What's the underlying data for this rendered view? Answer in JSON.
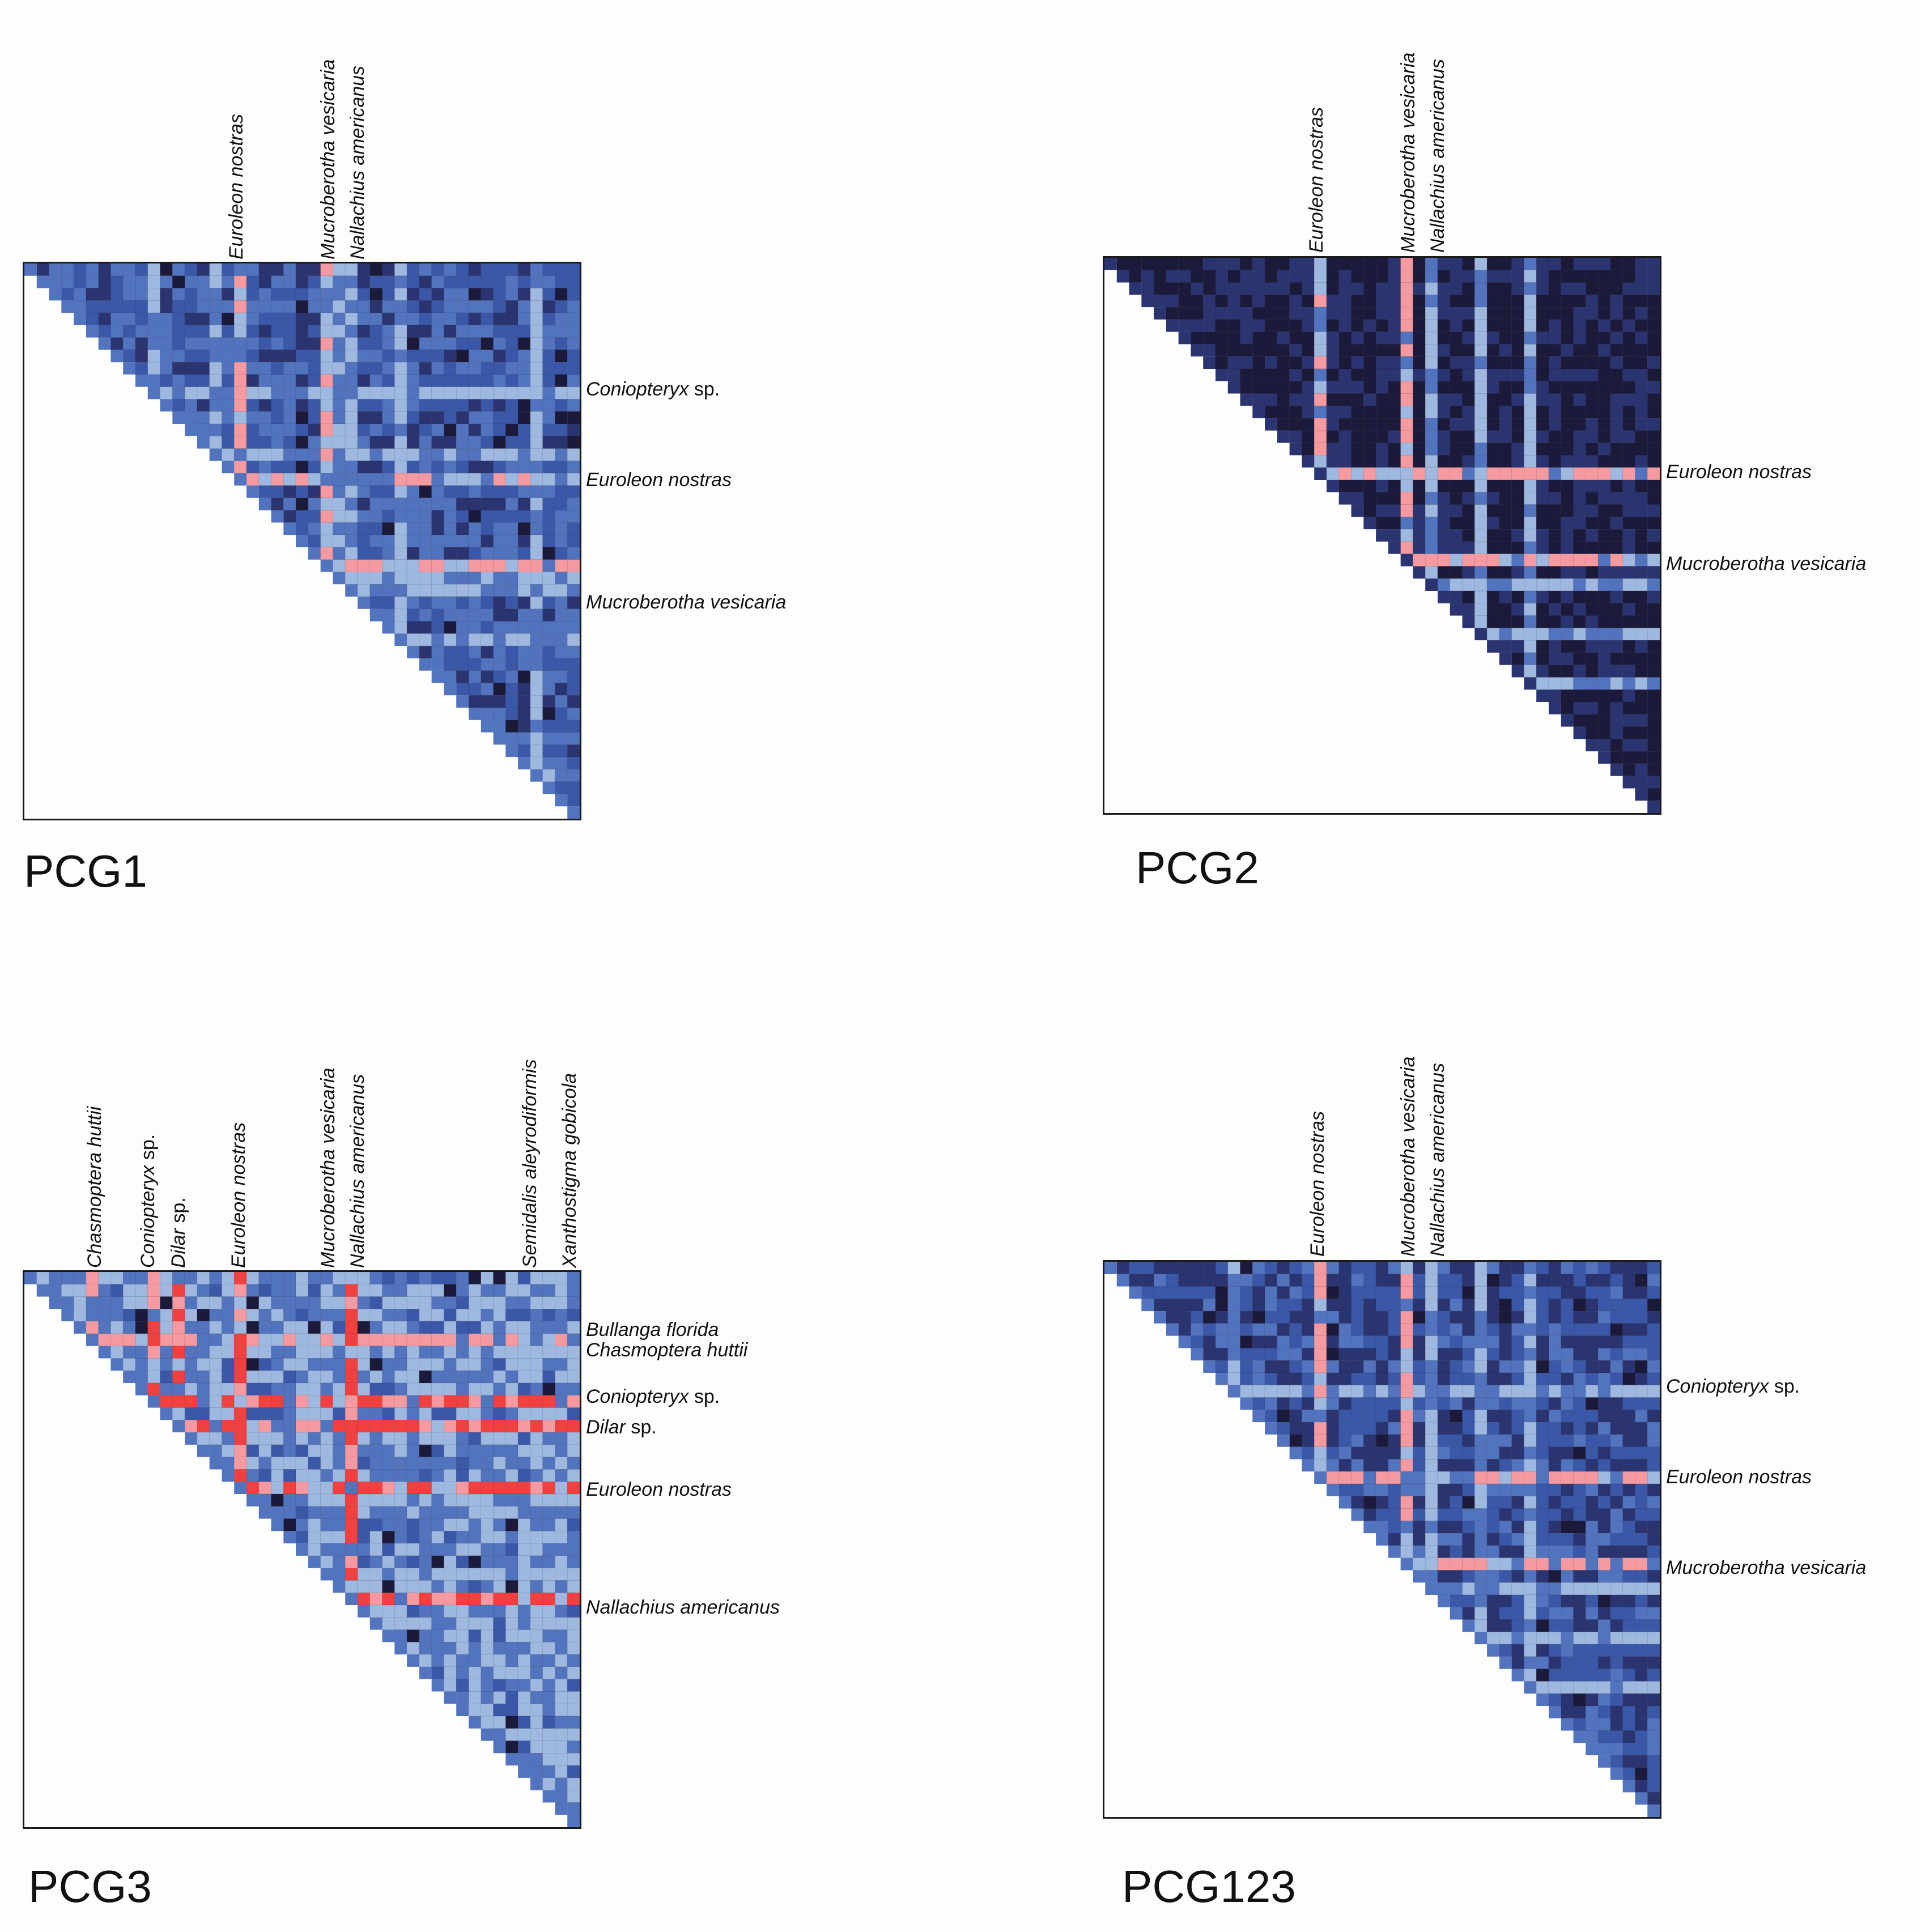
{
  "chart_data": [
    {
      "type": "heatmap",
      "title": "PCG1",
      "columns_labeled": [
        "Euroleon nostras",
        "Mucroberotha vesicaria",
        "Nallachius americanus"
      ],
      "rows_labeled": [
        "Coniopteryx sp.",
        "Euroleon nostras",
        "Mucroberotha vesicaria"
      ],
      "color_scale": "dark navy (low) → blue → light blue → pink → red (high)"
    },
    {
      "type": "heatmap",
      "title": "PCG2",
      "columns_labeled": [
        "Euroleon nostras",
        "Mucroberotha vesicaria",
        "Nallachius americanus"
      ],
      "rows_labeled": [
        "Euroleon nostras",
        "Mucroberotha vesicaria"
      ],
      "color_scale": "dark navy (low) → blue → light blue → pink → red (high)"
    },
    {
      "type": "heatmap",
      "title": "PCG3",
      "columns_labeled": [
        "Chasmoptera huttii",
        "Coniopteryx sp.",
        "Dilar sp.",
        "Euroleon nostras",
        "Mucroberotha vesicaria",
        "Nallachius americanus",
        "Semidalis aleyrodiformis",
        "Xanthostigma gobicola"
      ],
      "rows_labeled": [
        "Bullanga florida",
        "Chasmoptera huttii",
        "Coniopteryx sp.",
        "Dilar sp.",
        "Euroleon nostras",
        "Nallachius americanus"
      ],
      "color_scale": "dark navy (low) → blue → light blue → pink → red (high)"
    },
    {
      "type": "heatmap",
      "title": "PCG123",
      "columns_labeled": [
        "Euroleon nostras",
        "Mucroberotha vesicaria",
        "Nallachius americanus"
      ],
      "rows_labeled": [
        "Coniopteryx sp.",
        "Euroleon nostras",
        "Mucroberotha vesicaria"
      ],
      "color_scale": "dark navy (low) → blue → light blue → pink → red (high)"
    }
  ],
  "panels": {
    "p1": {
      "title": "PCG1",
      "cols": [
        {
          "label": "Euroleon nostras",
          "italic": "Euroleon nostras",
          "plain": ""
        },
        {
          "label": "Mucroberotha vesicaria",
          "italic": "Mucroberotha vesicaria",
          "plain": ""
        },
        {
          "label": "Nallachius americanus",
          "italic": "Nallachius americanus",
          "plain": ""
        }
      ],
      "rows": [
        {
          "italic": "Coniopteryx",
          "plain": " sp."
        },
        {
          "italic": "Euroleon nostras",
          "plain": ""
        },
        {
          "italic": "Mucroberotha vesicaria",
          "plain": ""
        }
      ]
    },
    "p2": {
      "title": "PCG2",
      "cols": [
        {
          "italic": "Euroleon nostras",
          "plain": ""
        },
        {
          "italic": "Mucroberotha vesicaria",
          "plain": ""
        },
        {
          "italic": "Nallachius americanus",
          "plain": ""
        }
      ],
      "rows": [
        {
          "italic": "Euroleon nostras",
          "plain": ""
        },
        {
          "italic": "Mucroberotha vesicaria",
          "plain": ""
        }
      ]
    },
    "p3": {
      "title": "PCG3",
      "cols": [
        {
          "italic": "Chasmoptera huttii",
          "plain": ""
        },
        {
          "italic": "Coniopteryx",
          "plain": " sp."
        },
        {
          "italic": "Dilar",
          "plain": " sp."
        },
        {
          "italic": "Euroleon nostras",
          "plain": ""
        },
        {
          "italic": "Mucroberotha vesicaria",
          "plain": ""
        },
        {
          "italic": "Nallachius americanus",
          "plain": ""
        },
        {
          "italic": "Semidalis aleyrodiformis",
          "plain": ""
        },
        {
          "italic": "Xanthostigma gobicola",
          "plain": ""
        }
      ],
      "rows": [
        {
          "italic": "Bullanga florida",
          "plain": ""
        },
        {
          "italic": "Chasmoptera huttii",
          "plain": ""
        },
        {
          "italic": "Coniopteryx",
          "plain": " sp."
        },
        {
          "italic": "Dilar",
          "plain": " sp."
        },
        {
          "italic": "Euroleon nostras",
          "plain": ""
        },
        {
          "italic": "Nallachius americanus",
          "plain": ""
        }
      ]
    },
    "p4": {
      "title": "PCG123",
      "cols": [
        {
          "italic": "Euroleon nostras",
          "plain": ""
        },
        {
          "italic": "Mucroberotha vesicaria",
          "plain": ""
        },
        {
          "italic": "Nallachius americanus",
          "plain": ""
        }
      ],
      "rows": [
        {
          "italic": "Coniopteryx",
          "plain": " sp."
        },
        {
          "italic": "Euroleon nostras",
          "plain": ""
        },
        {
          "italic": "Mucroberotha vesicaria",
          "plain": ""
        }
      ]
    }
  },
  "colors": {
    "darkest": "#1c1a3a",
    "dark": "#2a3470",
    "blue": "#3a57a8",
    "mid_blue": "#5273bd",
    "light_blue": "#9fb8e0",
    "pink": "#f59aa0",
    "red": "#f0403f"
  }
}
